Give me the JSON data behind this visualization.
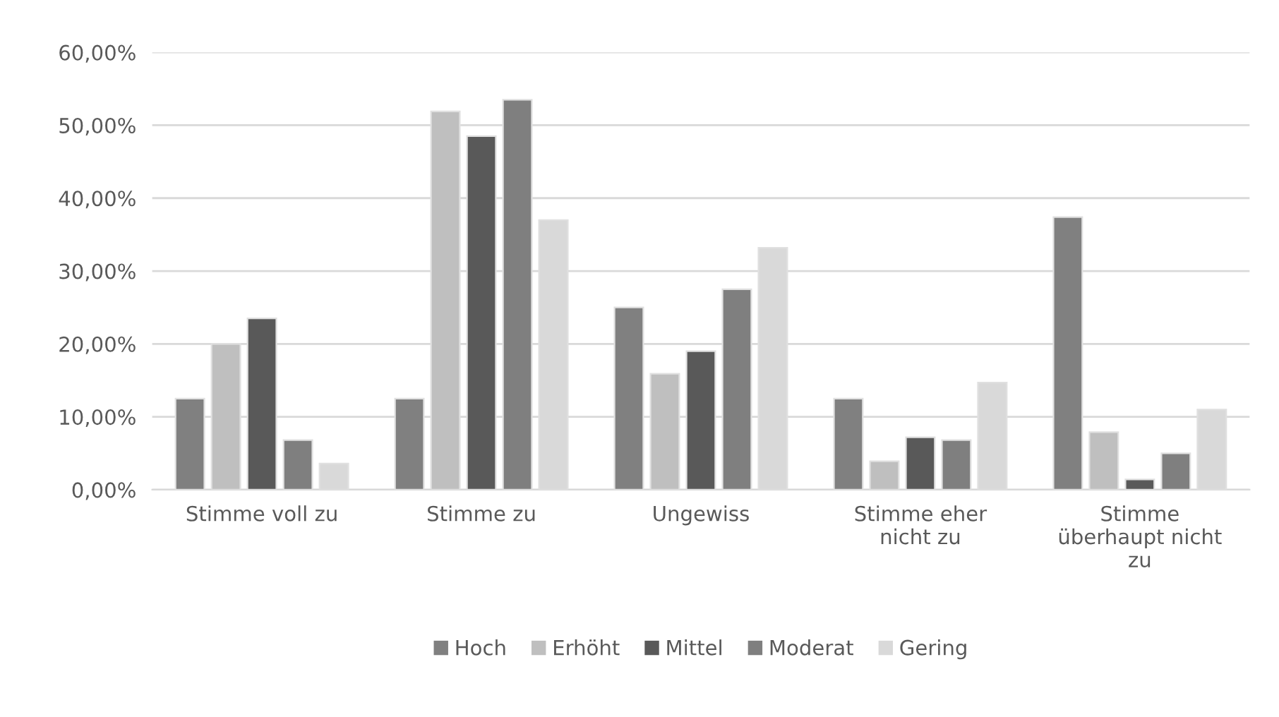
{
  "chart_data": {
    "type": "bar",
    "categories": [
      "Stimme voll zu",
      "Stimme zu",
      "Ungewiss",
      "Stimme eher nicht zu",
      "Stimme überhaupt nicht zu"
    ],
    "series": [
      {
        "name": "Hoch",
        "color": "#808080",
        "values": [
          12.5,
          12.5,
          25.0,
          12.5,
          37.4
        ]
      },
      {
        "name": "Erhöht",
        "color": "#bfbfbf",
        "values": [
          20.0,
          51.9,
          15.9,
          3.9,
          7.9
        ]
      },
      {
        "name": "Mittel",
        "color": "#595959",
        "values": [
          23.5,
          48.5,
          19.0,
          7.2,
          1.4
        ]
      },
      {
        "name": "Moderat",
        "color": "#7f7f7f",
        "values": [
          6.8,
          53.5,
          27.5,
          6.8,
          5.0
        ]
      },
      {
        "name": "Gering",
        "color": "#d9d9d9",
        "values": [
          3.6,
          37.0,
          33.2,
          14.7,
          11.0
        ]
      }
    ],
    "ylim": [
      0,
      60
    ],
    "yticks": [
      {
        "value": 0,
        "label": "0,00%"
      },
      {
        "value": 10,
        "label": "10,00%"
      },
      {
        "value": 20,
        "label": "20,00%"
      },
      {
        "value": 30,
        "label": "30,00%"
      },
      {
        "value": 40,
        "label": "40,00%"
      },
      {
        "value": 50,
        "label": "50,00%"
      },
      {
        "value": 60,
        "label": "60,00%"
      }
    ],
    "grid": "y",
    "legend": "bottom"
  }
}
